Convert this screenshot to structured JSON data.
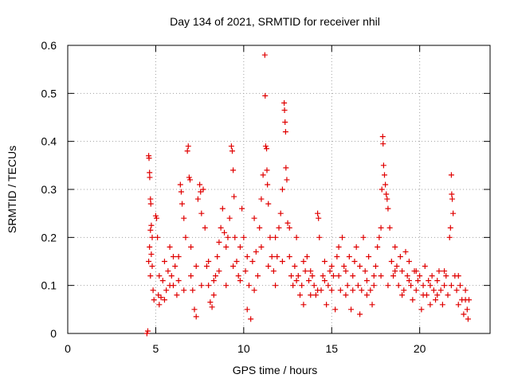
{
  "chart_data": {
    "type": "scatter",
    "title": "Day 134 of 2021, SRMTID for receiver nhil",
    "xlabel": "GPS time / hours",
    "ylabel": "SRMTID / TECUs",
    "xlim": [
      0,
      24
    ],
    "ylim": [
      0,
      0.6
    ],
    "xticks": [
      0,
      5,
      10,
      15,
      20
    ],
    "yticks": [
      0,
      0.1,
      0.2,
      0.3,
      0.4,
      0.5,
      0.6
    ],
    "xtick_labels": [
      "0",
      "5",
      "10",
      "15",
      "20"
    ],
    "ytick_labels": [
      "0",
      "0.1",
      "0.2",
      "0.3",
      "0.4",
      "0.5",
      "0.6"
    ],
    "grid": true,
    "marker": "plus",
    "series": [
      {
        "name": "SRMTID",
        "color": "#e00000",
        "points": [
          [
            4.5,
            0.0
          ],
          [
            4.55,
            0.005
          ],
          [
            4.6,
            0.37
          ],
          [
            4.62,
            0.365
          ],
          [
            4.65,
            0.335
          ],
          [
            4.66,
            0.325
          ],
          [
            4.7,
            0.28
          ],
          [
            4.72,
            0.27
          ],
          [
            4.75,
            0.225
          ],
          [
            4.7,
            0.215
          ],
          [
            4.8,
            0.2
          ],
          [
            4.65,
            0.18
          ],
          [
            4.75,
            0.165
          ],
          [
            4.6,
            0.15
          ],
          [
            4.8,
            0.14
          ],
          [
            4.7,
            0.12
          ],
          [
            4.85,
            0.09
          ],
          [
            4.9,
            0.07
          ],
          [
            5.0,
            0.245
          ],
          [
            5.05,
            0.24
          ],
          [
            5.1,
            0.2
          ],
          [
            5.15,
            0.08
          ],
          [
            5.2,
            0.06
          ],
          [
            5.3,
            0.075
          ],
          [
            5.4,
            0.11
          ],
          [
            5.5,
            0.15
          ],
          [
            5.6,
            0.09
          ],
          [
            5.7,
            0.13
          ],
          [
            5.8,
            0.18
          ],
          [
            5.9,
            0.12
          ],
          [
            6.0,
            0.1
          ],
          [
            6.1,
            0.14
          ],
          [
            6.2,
            0.08
          ],
          [
            6.3,
            0.16
          ],
          [
            6.4,
            0.31
          ],
          [
            6.45,
            0.295
          ],
          [
            6.5,
            0.27
          ],
          [
            6.6,
            0.24
          ],
          [
            6.7,
            0.2
          ],
          [
            6.8,
            0.38
          ],
          [
            6.85,
            0.39
          ],
          [
            6.9,
            0.325
          ],
          [
            6.95,
            0.32
          ],
          [
            7.0,
            0.12
          ],
          [
            7.1,
            0.09
          ],
          [
            7.2,
            0.05
          ],
          [
            7.3,
            0.035
          ],
          [
            7.4,
            0.28
          ],
          [
            7.5,
            0.31
          ],
          [
            7.55,
            0.295
          ],
          [
            7.6,
            0.25
          ],
          [
            7.7,
            0.3
          ],
          [
            7.8,
            0.22
          ],
          [
            7.9,
            0.14
          ],
          [
            8.0,
            0.1
          ],
          [
            8.1,
            0.065
          ],
          [
            8.2,
            0.055
          ],
          [
            8.3,
            0.08
          ],
          [
            8.4,
            0.12
          ],
          [
            8.5,
            0.16
          ],
          [
            8.6,
            0.19
          ],
          [
            8.7,
            0.22
          ],
          [
            8.8,
            0.26
          ],
          [
            8.9,
            0.21
          ],
          [
            9.0,
            0.18
          ],
          [
            9.1,
            0.2
          ],
          [
            9.2,
            0.24
          ],
          [
            9.3,
            0.39
          ],
          [
            9.35,
            0.38
          ],
          [
            9.4,
            0.34
          ],
          [
            9.45,
            0.285
          ],
          [
            9.5,
            0.2
          ],
          [
            9.6,
            0.15
          ],
          [
            9.7,
            0.12
          ],
          [
            9.8,
            0.18
          ],
          [
            9.9,
            0.26
          ],
          [
            10.0,
            0.2
          ],
          [
            10.1,
            0.13
          ],
          [
            10.2,
            0.05
          ],
          [
            10.3,
            0.1
          ],
          [
            10.4,
            0.03
          ],
          [
            10.5,
            0.15
          ],
          [
            10.6,
            0.24
          ],
          [
            10.7,
            0.17
          ],
          [
            10.8,
            0.12
          ],
          [
            10.9,
            0.22
          ],
          [
            11.0,
            0.28
          ],
          [
            11.1,
            0.33
          ],
          [
            11.2,
            0.58
          ],
          [
            11.22,
            0.495
          ],
          [
            11.25,
            0.39
          ],
          [
            11.3,
            0.385
          ],
          [
            11.32,
            0.34
          ],
          [
            11.35,
            0.31
          ],
          [
            11.4,
            0.27
          ],
          [
            11.5,
            0.2
          ],
          [
            11.6,
            0.16
          ],
          [
            11.7,
            0.13
          ],
          [
            11.8,
            0.1
          ],
          [
            11.9,
            0.16
          ],
          [
            12.0,
            0.22
          ],
          [
            12.1,
            0.25
          ],
          [
            12.2,
            0.3
          ],
          [
            12.3,
            0.48
          ],
          [
            12.32,
            0.465
          ],
          [
            12.35,
            0.44
          ],
          [
            12.38,
            0.42
          ],
          [
            12.4,
            0.345
          ],
          [
            12.45,
            0.32
          ],
          [
            12.5,
            0.23
          ],
          [
            12.6,
            0.16
          ],
          [
            12.7,
            0.12
          ],
          [
            12.8,
            0.1
          ],
          [
            12.9,
            0.14
          ],
          [
            13.0,
            0.2
          ],
          [
            13.1,
            0.12
          ],
          [
            13.2,
            0.08
          ],
          [
            13.3,
            0.1
          ],
          [
            13.4,
            0.06
          ],
          [
            13.5,
            0.13
          ],
          [
            13.6,
            0.16
          ],
          [
            13.7,
            0.11
          ],
          [
            13.8,
            0.08
          ],
          [
            13.9,
            0.12
          ],
          [
            14.0,
            0.1
          ],
          [
            14.1,
            0.08
          ],
          [
            14.2,
            0.25
          ],
          [
            14.25,
            0.24
          ],
          [
            14.3,
            0.2
          ],
          [
            14.4,
            0.09
          ],
          [
            14.5,
            0.12
          ],
          [
            14.6,
            0.15
          ],
          [
            14.7,
            0.06
          ],
          [
            14.8,
            0.1
          ],
          [
            14.9,
            0.13
          ],
          [
            15.0,
            0.09
          ],
          [
            15.1,
            0.12
          ],
          [
            15.2,
            0.05
          ],
          [
            15.3,
            0.16
          ],
          [
            15.4,
            0.18
          ],
          [
            15.5,
            0.09
          ],
          [
            15.6,
            0.2
          ],
          [
            15.7,
            0.14
          ],
          [
            15.8,
            0.08
          ],
          [
            15.9,
            0.1
          ],
          [
            16.0,
            0.16
          ],
          [
            16.1,
            0.05
          ],
          [
            16.2,
            0.12
          ],
          [
            16.3,
            0.15
          ],
          [
            16.4,
            0.18
          ],
          [
            16.5,
            0.1
          ],
          [
            16.6,
            0.04
          ],
          [
            16.7,
            0.09
          ],
          [
            16.8,
            0.2
          ],
          [
            16.9,
            0.13
          ],
          [
            17.0,
            0.11
          ],
          [
            17.1,
            0.16
          ],
          [
            17.2,
            0.09
          ],
          [
            17.3,
            0.06
          ],
          [
            17.4,
            0.12
          ],
          [
            17.5,
            0.14
          ],
          [
            17.6,
            0.18
          ],
          [
            17.7,
            0.2
          ],
          [
            17.8,
            0.22
          ],
          [
            17.85,
            0.3
          ],
          [
            17.9,
            0.41
          ],
          [
            17.92,
            0.395
          ],
          [
            17.95,
            0.35
          ],
          [
            18.0,
            0.33
          ],
          [
            18.05,
            0.31
          ],
          [
            18.1,
            0.29
          ],
          [
            18.15,
            0.28
          ],
          [
            18.2,
            0.26
          ],
          [
            18.3,
            0.22
          ],
          [
            18.4,
            0.15
          ],
          [
            18.5,
            0.12
          ],
          [
            18.6,
            0.18
          ],
          [
            18.7,
            0.14
          ],
          [
            18.8,
            0.1
          ],
          [
            18.9,
            0.16
          ],
          [
            19.0,
            0.13
          ],
          [
            19.1,
            0.09
          ],
          [
            19.2,
            0.17
          ],
          [
            19.3,
            0.12
          ],
          [
            19.4,
            0.15
          ],
          [
            19.5,
            0.1
          ],
          [
            19.6,
            0.07
          ],
          [
            19.7,
            0.13
          ],
          [
            19.8,
            0.09
          ],
          [
            19.9,
            0.11
          ],
          [
            20.0,
            0.12
          ],
          [
            20.1,
            0.05
          ],
          [
            20.2,
            0.1
          ],
          [
            20.3,
            0.14
          ],
          [
            20.4,
            0.08
          ],
          [
            20.5,
            0.11
          ],
          [
            20.6,
            0.06
          ],
          [
            20.7,
            0.12
          ],
          [
            20.8,
            0.09
          ],
          [
            20.9,
            0.07
          ],
          [
            21.0,
            0.11
          ],
          [
            21.1,
            0.13
          ],
          [
            21.2,
            0.09
          ],
          [
            21.3,
            0.06
          ],
          [
            21.4,
            0.1
          ],
          [
            21.5,
            0.12
          ],
          [
            21.6,
            0.08
          ],
          [
            21.7,
            0.2
          ],
          [
            21.75,
            0.22
          ],
          [
            21.8,
            0.33
          ],
          [
            21.82,
            0.29
          ],
          [
            21.85,
            0.28
          ],
          [
            21.9,
            0.25
          ],
          [
            22.0,
            0.12
          ],
          [
            22.1,
            0.09
          ],
          [
            22.2,
            0.06
          ],
          [
            22.3,
            0.1
          ],
          [
            22.4,
            0.07
          ],
          [
            22.5,
            0.04
          ],
          [
            22.6,
            0.09
          ],
          [
            22.7,
            0.05
          ],
          [
            22.75,
            0.03
          ],
          [
            22.8,
            0.07
          ],
          [
            5.2,
            0.12
          ],
          [
            5.5,
            0.07
          ],
          [
            5.8,
            0.1
          ],
          [
            6.0,
            0.16
          ],
          [
            6.3,
            0.11
          ],
          [
            6.6,
            0.09
          ],
          [
            7.0,
            0.18
          ],
          [
            7.3,
            0.14
          ],
          [
            7.6,
            0.1
          ],
          [
            8.0,
            0.15
          ],
          [
            8.3,
            0.11
          ],
          [
            8.6,
            0.13
          ],
          [
            9.0,
            0.1
          ],
          [
            9.4,
            0.14
          ],
          [
            9.8,
            0.11
          ],
          [
            10.2,
            0.16
          ],
          [
            10.6,
            0.09
          ],
          [
            11.0,
            0.18
          ],
          [
            11.4,
            0.14
          ],
          [
            11.8,
            0.2
          ],
          [
            12.2,
            0.15
          ],
          [
            12.6,
            0.22
          ],
          [
            13.0,
            0.11
          ],
          [
            13.4,
            0.15
          ],
          [
            13.8,
            0.13
          ],
          [
            14.2,
            0.09
          ],
          [
            14.6,
            0.11
          ],
          [
            15.0,
            0.14
          ],
          [
            15.4,
            0.12
          ],
          [
            15.8,
            0.13
          ],
          [
            16.2,
            0.09
          ],
          [
            16.6,
            0.14
          ],
          [
            17.0,
            0.08
          ],
          [
            17.4,
            0.1
          ],
          [
            17.8,
            0.12
          ],
          [
            18.2,
            0.1
          ],
          [
            18.6,
            0.13
          ],
          [
            19.0,
            0.08
          ],
          [
            19.4,
            0.11
          ],
          [
            19.8,
            0.13
          ],
          [
            20.2,
            0.08
          ],
          [
            20.6,
            0.1
          ],
          [
            21.0,
            0.08
          ],
          [
            21.4,
            0.13
          ],
          [
            21.8,
            0.1
          ],
          [
            22.2,
            0.12
          ],
          [
            22.6,
            0.07
          ]
        ]
      }
    ]
  }
}
